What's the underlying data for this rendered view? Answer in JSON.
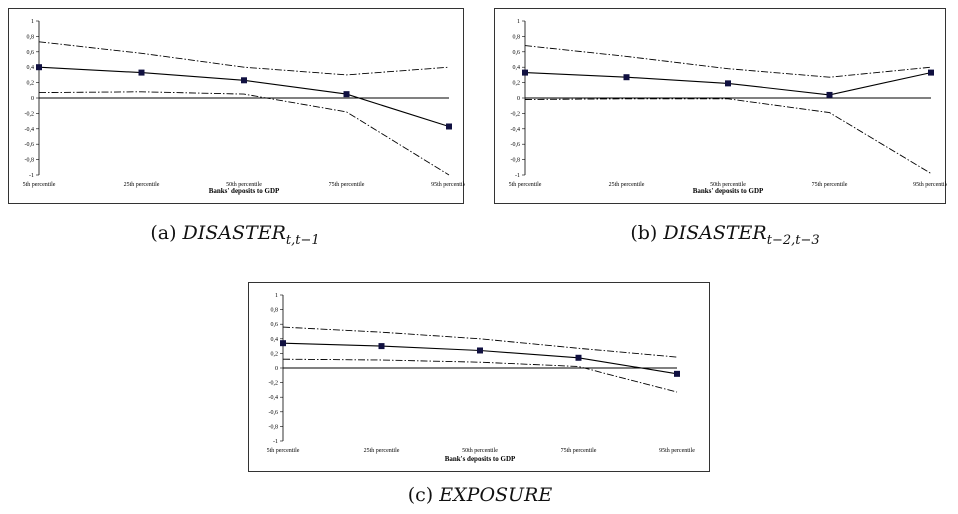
{
  "chart_data": [
    {
      "type": "line",
      "caption_prefix": "(a)",
      "caption_main": "DISASTER",
      "caption_sub": "t,t−1",
      "xlabel": "Banks' deposits to GDP",
      "categories": [
        "5th percentile",
        "25th percentile",
        "50th percentile",
        "75th percentile",
        "95th percentile"
      ],
      "ylim": [
        -1,
        1
      ],
      "yticks": [
        "1",
        "0,8",
        "0,6",
        "0,4",
        "0,2",
        "0",
        "-0,2",
        "-0,4",
        "-0,6",
        "-0,8",
        "-1"
      ],
      "series": [
        {
          "role": "estimate",
          "values": [
            0.4,
            0.33,
            0.23,
            0.05,
            -0.37
          ]
        },
        {
          "role": "upper",
          "values": [
            0.73,
            0.58,
            0.4,
            0.3,
            0.4
          ]
        },
        {
          "role": "lower",
          "values": [
            0.07,
            0.08,
            0.05,
            -0.18,
            -1.0
          ]
        }
      ]
    },
    {
      "type": "line",
      "caption_prefix": "(b)",
      "caption_main": "DISASTER",
      "caption_sub": "t−2,t−3",
      "xlabel": "Banks' deposits to GDP",
      "categories": [
        "5th percentile",
        "25th percentile",
        "50th percentile",
        "75th percentile",
        "95th percentile"
      ],
      "ylim": [
        -1,
        1
      ],
      "yticks": [
        "1",
        "0,8",
        "0,6",
        "0,4",
        "0,2",
        "0",
        "-0,2",
        "-0,4",
        "-0,6",
        "-0,8",
        "-1"
      ],
      "series": [
        {
          "role": "estimate",
          "values": [
            0.33,
            0.27,
            0.19,
            0.04,
            0.33
          ]
        },
        {
          "role": "upper",
          "values": [
            0.68,
            0.54,
            0.38,
            0.27,
            0.4
          ]
        },
        {
          "role": "lower",
          "values": [
            -0.02,
            -0.01,
            -0.01,
            -0.19,
            -0.98
          ]
        }
      ]
    },
    {
      "type": "line",
      "caption_prefix": "(c)",
      "caption_main": "EXPOSURE",
      "caption_sub": "",
      "xlabel": "Bank's deposits to GDP",
      "categories": [
        "5th percentile",
        "25th percentile",
        "50th percentile",
        "75th percentile",
        "95th percentile"
      ],
      "ylim": [
        -1,
        1
      ],
      "yticks": [
        "1",
        "0,8",
        "0,6",
        "0,4",
        "0,2",
        "0",
        "-0,2",
        "-0,4",
        "-0,6",
        "-0,8",
        "-1"
      ],
      "series": [
        {
          "role": "estimate",
          "values": [
            0.34,
            0.3,
            0.24,
            0.14,
            -0.08
          ]
        },
        {
          "role": "upper",
          "values": [
            0.56,
            0.49,
            0.4,
            0.27,
            0.15
          ]
        },
        {
          "role": "lower",
          "values": [
            0.12,
            0.11,
            0.08,
            0.02,
            -0.33
          ]
        }
      ]
    }
  ]
}
